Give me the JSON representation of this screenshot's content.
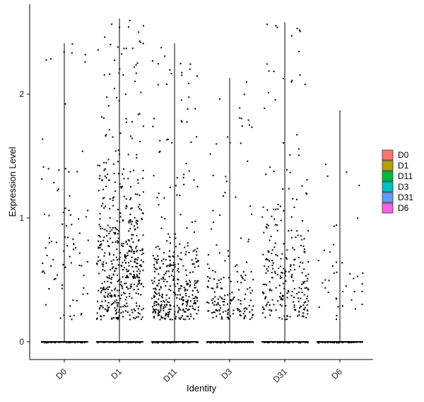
{
  "chart_data": {
    "type": "violin-jitter",
    "title": "",
    "xlabel": "Identity",
    "ylabel": "Expression Level",
    "ylim": [
      -0.15,
      2.7
    ],
    "yticks": [
      0,
      1,
      2
    ],
    "grid": false,
    "legend_position": "right",
    "point_color": "#000000",
    "categories": [
      "D0",
      "D1",
      "D11",
      "D3",
      "D31",
      "D6"
    ],
    "series": [
      {
        "name": "D0",
        "color": "#F8766D",
        "max": 2.41,
        "n_nonzero": 85,
        "center": 0.9
      },
      {
        "name": "D1",
        "color": "#B79F00",
        "max": 2.61,
        "n_nonzero": 520,
        "center": 1.0
      },
      {
        "name": "D11",
        "color": "#00BA38",
        "max": 2.41,
        "n_nonzero": 380,
        "center": 0.55
      },
      {
        "name": "D3",
        "color": "#00BFC4",
        "max": 2.13,
        "n_nonzero": 170,
        "center": 0.45
      },
      {
        "name": "D31",
        "color": "#619CFF",
        "max": 2.58,
        "n_nonzero": 260,
        "center": 0.75
      },
      {
        "name": "D6",
        "color": "#F564E3",
        "max": 1.87,
        "n_nonzero": 40,
        "center": 0.8
      }
    ]
  }
}
